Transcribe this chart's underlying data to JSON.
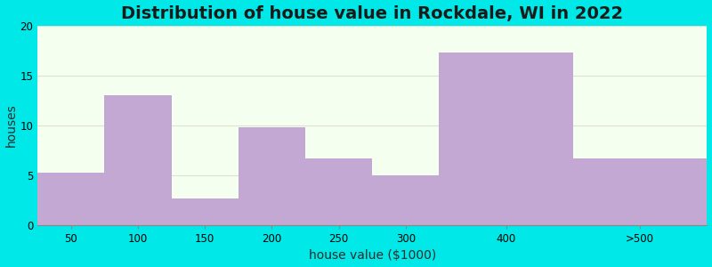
{
  "title": "Distribution of house value in Rockdale, WI in 2022",
  "xlabel": "house value ($1000)",
  "ylabel": "houses",
  "bar_lefts": [
    0,
    1,
    2,
    3,
    4,
    5,
    6,
    8
  ],
  "bar_widths": [
    1,
    1,
    1,
    1,
    1,
    1,
    2,
    2
  ],
  "values": [
    5.3,
    13.0,
    2.7,
    9.8,
    6.7,
    5.0,
    17.3,
    6.7
  ],
  "xtick_positions": [
    0.5,
    1.5,
    2.5,
    3.5,
    4.5,
    5.5,
    7.0,
    9.0
  ],
  "xtick_labels": [
    "50",
    "100",
    "150",
    "200",
    "250",
    "300",
    "400",
    ">500"
  ],
  "bar_color": "#c4a8d4",
  "bar_edgecolor": "#c4a8d4",
  "background_outer": "#00e8e8",
  "background_inner_top": "#f5fff0",
  "background_inner_bottom": "#e8f8e8",
  "ylim": [
    0,
    20
  ],
  "xlim": [
    0,
    10
  ],
  "yticks": [
    0,
    5,
    10,
    15,
    20
  ],
  "title_fontsize": 14,
  "axis_label_fontsize": 10,
  "tick_fontsize": 8.5,
  "grid_color": "#e0e0d0"
}
